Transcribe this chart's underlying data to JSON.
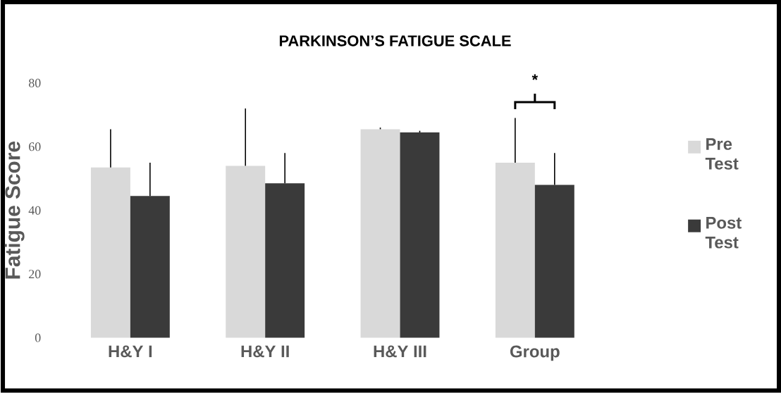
{
  "chart_data": {
    "type": "bar",
    "title": "PARKINSON’S FATIGUE SCALE",
    "ylabel": "Fatigue Score",
    "categories": [
      "H&Y I",
      "H&Y II",
      "H&Y III",
      "Group"
    ],
    "series": [
      {
        "name": "Pre Test",
        "color": "#d9d9d9",
        "values": [
          53.5,
          54,
          65.5,
          55
        ],
        "errors": [
          [
            53.5,
            65.5
          ],
          [
            54,
            72
          ],
          [
            65.5,
            66
          ],
          [
            55,
            69
          ]
        ]
      },
      {
        "name": "Post Test",
        "color": "#3a3a3a",
        "values": [
          44.5,
          48.5,
          64.5,
          48
        ],
        "errors": [
          [
            44.5,
            55
          ],
          [
            48.5,
            58
          ],
          [
            64.5,
            65
          ],
          [
            48,
            58
          ]
        ]
      }
    ],
    "ylim": [
      0,
      80
    ],
    "yticks": [
      0,
      20,
      40,
      60,
      80
    ],
    "grid": false,
    "legend": "right",
    "annotations": [
      "*"
    ]
  }
}
